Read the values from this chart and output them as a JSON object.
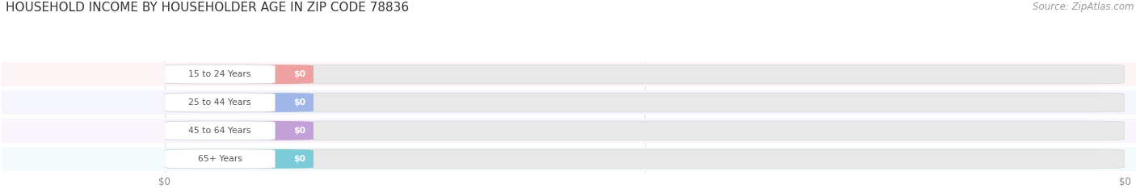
{
  "title": "HOUSEHOLD INCOME BY HOUSEHOLDER AGE IN ZIP CODE 78836",
  "source": "Source: ZipAtlas.com",
  "categories": [
    "15 to 24 Years",
    "25 to 44 Years",
    "45 to 64 Years",
    "65+ Years"
  ],
  "values": [
    0,
    0,
    0,
    0
  ],
  "bar_colors": [
    "#f09898",
    "#98b0e8",
    "#c098d8",
    "#70c8d8"
  ],
  "row_bg_colors": [
    "#fdf5f5",
    "#f5f5fd",
    "#faf5fd",
    "#f3fbfd"
  ],
  "title_fontsize": 11,
  "source_fontsize": 8.5,
  "background_color": "#ffffff",
  "bar_track_color": "#e8e8e8",
  "bar_height": 0.68,
  "label_pill_color": "#ffffff",
  "value_label_color": "#ffffff"
}
